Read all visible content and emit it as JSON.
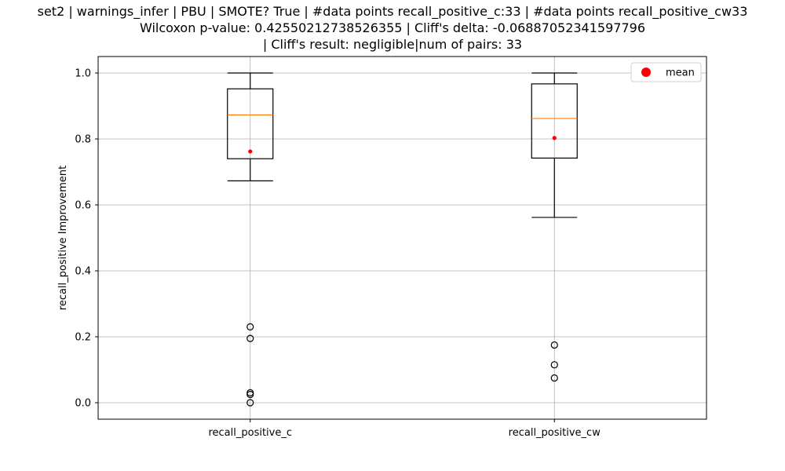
{
  "chart_data": {
    "type": "box",
    "title_lines": [
      "set2 | warnings_infer | PBU | SMOTE? True | #data points recall_positive_c:33 | #data points recall_positive_cw33",
      "Wilcoxon p-value: 0.42550212738526355 | Cliff's delta: -0.06887052341597796",
      "| Cliff's result: negligible|num of pairs: 33"
    ],
    "ylabel": "recall_positive Improvement",
    "xlabel": "",
    "ylim": [
      -0.05,
      1.05
    ],
    "yticks": [
      0.0,
      0.2,
      0.4,
      0.6,
      0.8,
      1.0
    ],
    "ytick_labels": [
      "0.0",
      "0.2",
      "0.4",
      "0.6",
      "0.8",
      "1.0"
    ],
    "grid": true,
    "legend": {
      "placement": "top-right",
      "entries": [
        {
          "label": "mean",
          "color": "#ff0000"
        }
      ]
    },
    "colors": {
      "box": "#000000",
      "median": "#ff7f0e",
      "mean": "#ff0000",
      "grid": "#b0b0b0"
    },
    "boxes": [
      {
        "label": "recall_positive_c",
        "q1": 0.74,
        "median": 0.873,
        "q3": 0.952,
        "whisker_low": 0.673,
        "whisker_high": 1.0,
        "mean": 0.762,
        "outliers": [
          0.23,
          0.195,
          0.03,
          0.025,
          0.0
        ]
      },
      {
        "label": "recall_positive_cw",
        "q1": 0.742,
        "median": 0.862,
        "q3": 0.967,
        "whisker_low": 0.562,
        "whisker_high": 1.0,
        "mean": 0.803,
        "outliers": [
          0.175,
          0.115,
          0.075
        ]
      }
    ]
  }
}
